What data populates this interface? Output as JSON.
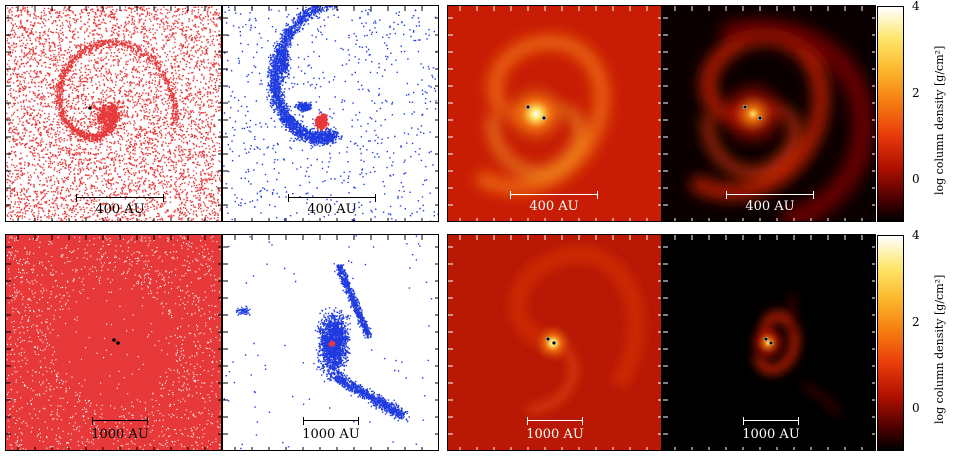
{
  "figure": {
    "rows": [
      {
        "panels": [
          {
            "style": "sph-red",
            "scale_label": "400 AU"
          },
          {
            "style": "sph-blue",
            "scale_label": "400 AU"
          },
          {
            "style": "density-bright",
            "scale_label": "400 AU"
          },
          {
            "style": "density-dark",
            "scale_label": "400 AU"
          }
        ],
        "colorbar": {
          "label": "log column density [g/cm²]",
          "ticks": [
            "4",
            "2",
            "0"
          ]
        }
      },
      {
        "panels": [
          {
            "style": "sph-red",
            "scale_label": "1000 AU"
          },
          {
            "style": "sph-blue",
            "scale_label": "1000 AU"
          },
          {
            "style": "density-bright",
            "scale_label": "1000 AU"
          },
          {
            "style": "density-dark",
            "scale_label": "1000 AU"
          }
        ],
        "colorbar": {
          "label": "log column density [g/cm²]",
          "ticks": [
            "4",
            "2",
            "0"
          ]
        }
      }
    ],
    "colors": {
      "sph_red": "#e8393a",
      "sph_blue": "#1f3be0",
      "colormap": [
        "#000000",
        "#4a0000",
        "#b01000",
        "#e83a0a",
        "#f57a10",
        "#fbb52a",
        "#fde66a",
        "#ffffff"
      ]
    }
  }
}
